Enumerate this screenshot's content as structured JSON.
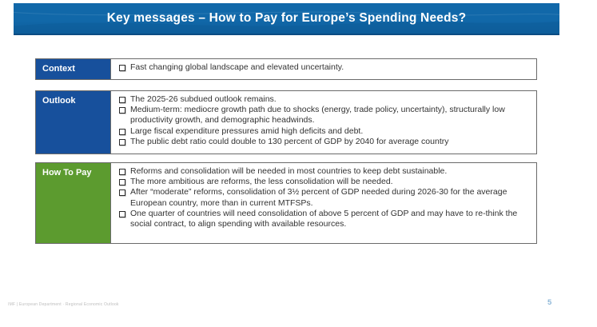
{
  "slide": {
    "title": "Key messages – How to Pay for Europe’s Spending Needs?",
    "footer": "IMF | European Department · Regional Economic Outlook",
    "page_number": "5",
    "colors": {
      "banner_blue": "#1168A9",
      "banner_blue_deep": "#0F5E9C",
      "banner_edge": "#0B4C82",
      "label_blue": "#17509C",
      "label_green": "#5C9B2F",
      "row_border": "#6a6a6a",
      "bullet_text": "#323232",
      "page_number_blue": "#8fb8d8"
    },
    "rows": [
      {
        "label": "Context",
        "color_key": "blue",
        "bullets": [
          "Fast changing global landscape and elevated uncertainty."
        ]
      },
      {
        "label": "Outlook",
        "color_key": "blue",
        "bullets": [
          "The 2025-26 subdued outlook remains.",
          "Medium-term: mediocre growth path due to shocks (energy, trade policy, uncertainty), structurally low productivity growth, and demographic headwinds.",
          "Large fiscal expenditure pressures amid high deficits and debt.",
          "The public debt ratio could double to 130 percent of GDP by 2040 for average country"
        ]
      },
      {
        "label": "How To Pay",
        "color_key": "green",
        "bullets": [
          "Reforms and consolidation will be needed in most countries to keep debt sustainable.",
          "The more ambitious are reforms, the less consolidation will be needed.",
          "After “moderate” reforms, consolidation of 3½ percent of GDP needed during 2026-30 for the average European country, more than in current MTFSPs.",
          "One quarter of countries will need consolidation of above 5 percent of GDP and may have to re-think the social contract, to align spending with available resources."
        ]
      }
    ]
  }
}
